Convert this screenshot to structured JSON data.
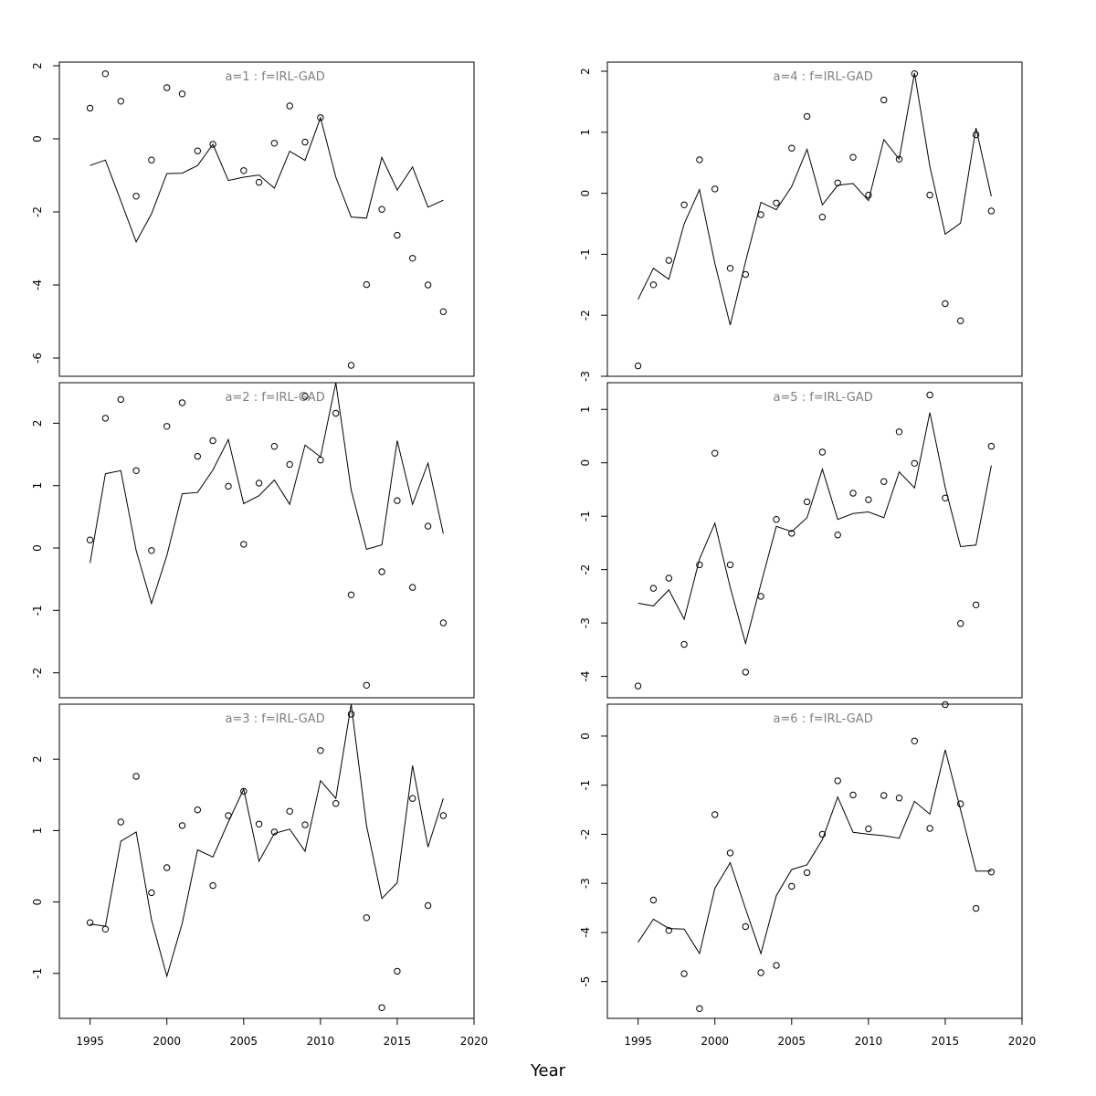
{
  "xlabel": "Year",
  "chart_data": [
    {
      "type": "line+scatter",
      "title": "a=1  :  f=IRL-GAD",
      "x": [
        1995,
        1996,
        1997,
        1998,
        1999,
        2000,
        2001,
        2002,
        2003,
        2004,
        2005,
        2006,
        2007,
        2008,
        2009,
        2010,
        2011,
        2012,
        2013,
        2014,
        2015,
        2016,
        2017,
        2018
      ],
      "fitted": [
        -0.73,
        -0.58,
        -1.7,
        -2.82,
        -2.05,
        -0.95,
        -0.94,
        -0.73,
        -0.15,
        -1.14,
        -1.05,
        -0.99,
        -1.35,
        -0.34,
        -0.59,
        0.58,
        -1.05,
        -2.14,
        -2.17,
        -0.51,
        -1.4,
        -0.77,
        -1.87,
        -1.68
      ],
      "observed": [
        0.84,
        1.78,
        1.03,
        -1.57,
        -0.58,
        1.4,
        1.23,
        -0.33,
        -0.15,
        null,
        -0.87,
        -1.19,
        -0.12,
        0.9,
        -0.09,
        0.58,
        null,
        -6.2,
        -3.99,
        -1.93,
        -2.64,
        -3.27,
        -4.0,
        -4.73
      ],
      "xlim": [
        1993,
        2020
      ],
      "ylim": [
        -6.5,
        2.1
      ],
      "yticks": [
        2,
        0,
        -2,
        -4,
        -6
      ],
      "ytick_labels": [
        "2",
        "0",
        "-2",
        "-4",
        "-6"
      ]
    },
    {
      "type": "line+scatter",
      "title": "a=2  :  f=IRL-GAD",
      "x": [
        1995,
        1996,
        1997,
        1998,
        1999,
        2000,
        2001,
        2002,
        2003,
        2004,
        2005,
        2006,
        2007,
        2008,
        2009,
        2010,
        2011,
        2012,
        2013,
        2014,
        2015,
        2016,
        2017,
        2018
      ],
      "fitted": [
        -0.24,
        1.19,
        1.24,
        -0.04,
        -0.89,
        -0.12,
        0.87,
        0.89,
        1.25,
        1.74,
        0.71,
        0.84,
        1.09,
        0.7,
        1.65,
        1.46,
        2.65,
        0.93,
        -0.02,
        0.05,
        1.72,
        0.7,
        1.36,
        0.23
      ],
      "observed": [
        0.13,
        2.08,
        2.38,
        1.24,
        -0.04,
        1.95,
        2.33,
        1.47,
        1.72,
        0.99,
        0.06,
        1.04,
        1.63,
        1.34,
        2.43,
        1.41,
        2.16,
        -0.75,
        -2.2,
        -0.38,
        0.76,
        -0.63,
        0.35,
        -1.2
      ],
      "xlim": [
        1993,
        2020
      ],
      "ylim": [
        -2.4,
        2.65
      ],
      "yticks": [
        2,
        1,
        0,
        -1,
        -2
      ],
      "ytick_labels": [
        "2",
        "1",
        "0",
        "-1",
        "-2"
      ]
    },
    {
      "type": "line+scatter",
      "title": "a=3  :  f=IRL-GAD",
      "x": [
        1995,
        1996,
        1997,
        1998,
        1999,
        2000,
        2001,
        2002,
        2003,
        2004,
        2005,
        2006,
        2007,
        2008,
        2009,
        2010,
        2011,
        2012,
        2013,
        2014,
        2015,
        2016,
        2017,
        2018
      ],
      "fitted": [
        -0.31,
        -0.34,
        0.85,
        0.98,
        -0.25,
        -1.04,
        -0.3,
        0.73,
        0.63,
        1.12,
        1.58,
        0.57,
        0.96,
        1.02,
        0.71,
        1.7,
        1.45,
        2.77,
        1.07,
        0.05,
        0.27,
        1.91,
        0.77,
        1.45
      ],
      "observed": [
        -0.29,
        -0.38,
        1.12,
        1.76,
        0.13,
        0.48,
        1.07,
        1.29,
        0.23,
        1.21,
        1.55,
        1.09,
        0.98,
        1.27,
        1.08,
        2.12,
        1.38,
        2.63,
        -0.22,
        -1.48,
        -0.97,
        1.45,
        -0.05,
        1.21
      ],
      "xlim": [
        1993,
        2020
      ],
      "ylim": [
        -1.63,
        2.77
      ],
      "yticks": [
        2,
        1,
        0,
        -1
      ],
      "ytick_labels": [
        "2",
        "1",
        "0",
        "-1"
      ]
    },
    {
      "type": "line+scatter",
      "title": "a=4  :  f=IRL-GAD",
      "x": [
        1995,
        1996,
        1997,
        1998,
        1999,
        2000,
        2001,
        2002,
        2003,
        2004,
        2005,
        2006,
        2007,
        2008,
        2009,
        2010,
        2011,
        2012,
        2013,
        2014,
        2015,
        2016,
        2017,
        2018
      ],
      "fitted": [
        -1.74,
        -1.23,
        -1.41,
        -0.5,
        0.06,
        -1.15,
        -2.16,
        -1.12,
        -0.15,
        -0.27,
        0.11,
        0.72,
        -0.19,
        0.13,
        0.16,
        -0.12,
        0.88,
        0.56,
        1.97,
        0.44,
        -0.67,
        -0.49,
        1.07,
        -0.05
      ],
      "observed": [
        -2.83,
        -1.5,
        -1.1,
        -0.19,
        0.55,
        0.07,
        -1.23,
        -1.33,
        -0.35,
        -0.16,
        0.74,
        1.26,
        -0.39,
        0.17,
        0.59,
        -0.03,
        1.53,
        0.56,
        1.96,
        -0.03,
        -1.81,
        -2.09,
        0.96,
        -0.29
      ],
      "xlim": [
        1993,
        2020
      ],
      "ylim": [
        -3.0,
        2.15
      ],
      "yticks": [
        2,
        1,
        0,
        -1,
        -2,
        -3
      ],
      "ytick_labels": [
        "2",
        "1",
        "0",
        "-1",
        "-2",
        "-3"
      ]
    },
    {
      "type": "line+scatter",
      "title": "a=5  :  f=IRL-GAD",
      "x": [
        1995,
        1996,
        1997,
        1998,
        1999,
        2000,
        2001,
        2002,
        2003,
        2004,
        2005,
        2006,
        2007,
        2008,
        2009,
        2010,
        2011,
        2012,
        2013,
        2014,
        2015,
        2016,
        2017,
        2018
      ],
      "fitted": [
        -2.63,
        -2.68,
        -2.38,
        -2.93,
        -1.8,
        -1.13,
        -2.33,
        -3.38,
        -2.27,
        -1.19,
        -1.29,
        -1.03,
        -0.12,
        -1.06,
        -0.95,
        -0.92,
        -1.03,
        -0.17,
        -0.47,
        0.94,
        -0.46,
        -1.57,
        -1.54,
        -0.05
      ],
      "observed": [
        -4.18,
        -2.35,
        -2.16,
        -3.4,
        -1.91,
        0.18,
        -1.91,
        -3.92,
        -2.5,
        -1.06,
        -1.32,
        -0.73,
        0.2,
        -1.35,
        -0.57,
        -0.69,
        -0.35,
        0.58,
        -0.01,
        1.27,
        -0.66,
        -3.01,
        -2.66,
        0.31
      ],
      "xlim": [
        1993,
        2020
      ],
      "ylim": [
        -4.4,
        1.5
      ],
      "yticks": [
        1,
        0,
        -1,
        -2,
        -3,
        -4
      ],
      "ytick_labels": [
        "1",
        "0",
        "-1",
        "-2",
        "-3",
        "-4"
      ]
    },
    {
      "type": "line+scatter",
      "title": "a=6  :  f=IRL-GAD",
      "x": [
        1995,
        1996,
        1997,
        1998,
        1999,
        2000,
        2001,
        2002,
        2003,
        2004,
        2005,
        2006,
        2007,
        2008,
        2009,
        2010,
        2011,
        2012,
        2013,
        2014,
        2015,
        2016,
        2017,
        2018
      ],
      "fitted": [
        -4.2,
        -3.73,
        -3.92,
        -3.93,
        -4.43,
        -3.1,
        -2.58,
        -3.52,
        -4.43,
        -3.25,
        -2.72,
        -2.62,
        -2.11,
        -1.24,
        -1.96,
        -2.0,
        -2.03,
        -2.08,
        -1.33,
        -1.59,
        -0.28,
        -1.5,
        -2.75,
        -2.75
      ],
      "observed": [
        null,
        -3.34,
        -3.96,
        -4.84,
        -5.55,
        -1.6,
        -2.38,
        -3.88,
        -4.82,
        -4.67,
        -3.06,
        -2.78,
        -2.0,
        -0.91,
        -1.2,
        -1.89,
        -1.21,
        -1.26,
        -0.1,
        -1.88,
        0.64,
        -1.38,
        -3.51,
        -2.77
      ],
      "xlim": [
        1993,
        2020
      ],
      "ylim": [
        -5.75,
        0.65
      ],
      "yticks": [
        0,
        -1,
        -2,
        -3,
        -4,
        -5
      ],
      "ytick_labels": [
        "0",
        "-1",
        "-2",
        "-3",
        "-4",
        "-5"
      ]
    }
  ],
  "xticks": [
    1995,
    2000,
    2005,
    2010,
    2015,
    2020
  ],
  "xtick_labels": [
    "1995",
    "2000",
    "2005",
    "2010",
    "2015",
    "2020"
  ]
}
